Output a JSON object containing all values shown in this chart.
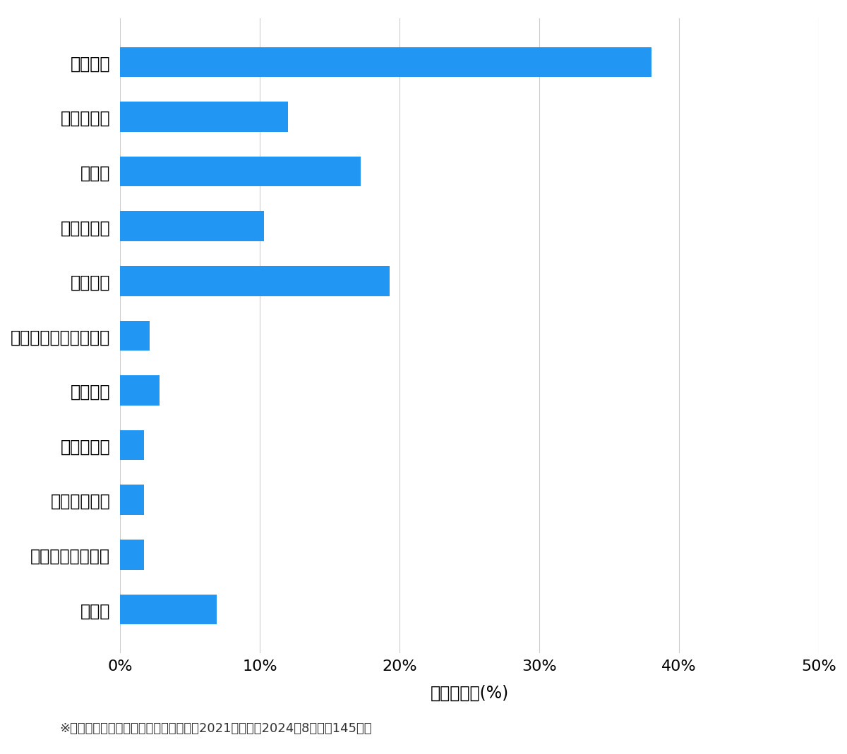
{
  "categories": [
    "玩関開鎖",
    "玩関鍵交換",
    "車開鎖",
    "その他開鎖",
    "車鍵作成",
    "イモビ付国産車鍵作成",
    "金庫開鎖",
    "玩関鍵作成",
    "その他鍵作成",
    "スーツケース開鎖",
    "その他"
  ],
  "values": [
    38.0,
    12.0,
    17.2,
    10.3,
    19.3,
    2.1,
    2.8,
    1.7,
    1.7,
    1.7,
    6.9
  ],
  "bar_color": "#2196F3",
  "xlabel": "件数の割合(%)",
  "xlim": [
    0,
    50
  ],
  "xticks": [
    0,
    10,
    20,
    30,
    40,
    50
  ],
  "xtick_labels": [
    "0%",
    "10%",
    "20%",
    "30%",
    "40%",
    "50%"
  ],
  "footnote": "※弊社受付の案件を対象に集計（期間：2021年１月～2024年8月、記14 5件）",
  "background_color": "#ffffff",
  "grid_color": "#cccccc",
  "label_fontsize": 17,
  "tick_fontsize": 16,
  "footnote_fontsize": 13
}
